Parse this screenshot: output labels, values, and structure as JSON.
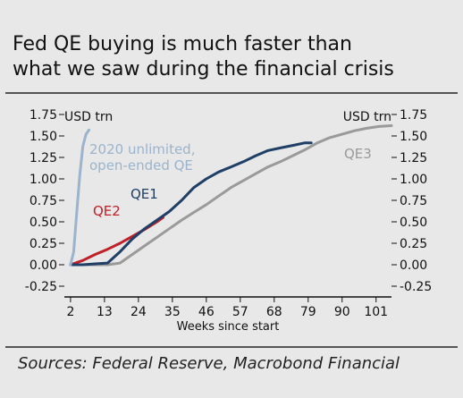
{
  "title_line1": "Fed QE buying is much faster than",
  "title_line2": "what we saw during the financial crisis",
  "source": "Sources: Federal Reserve, Macrobond Financial",
  "chart_data": {
    "type": "line",
    "xlabel": "Weeks since start",
    "unit_left": "USD trn",
    "unit_right": "USD trn",
    "xlim": [
      0,
      106
    ],
    "ylim": [
      -0.25,
      1.75
    ],
    "x_ticks": [
      2,
      13,
      24,
      35,
      46,
      57,
      68,
      79,
      90,
      101
    ],
    "y_ticks": [
      -0.25,
      0.0,
      0.25,
      0.5,
      0.75,
      1.0,
      1.25,
      1.5,
      1.75
    ],
    "y_tick_labels": [
      "-0.25",
      "0.00",
      "0.25",
      "0.50",
      "0.75",
      "1.00",
      "1.25",
      "1.50",
      "1.75"
    ],
    "series": [
      {
        "name": "2020 unlimited, open-ended QE",
        "name_lines": [
          "2020 unlimited,",
          "open-ended QE"
        ],
        "color": "#9bb3cc",
        "x": [
          2,
          3,
          4,
          5,
          6,
          7,
          8
        ],
        "y": [
          0.0,
          0.15,
          0.6,
          1.05,
          1.38,
          1.52,
          1.57
        ]
      },
      {
        "name": "QE1",
        "color": "#1f3f66",
        "x": [
          2,
          6,
          10,
          14,
          18,
          22,
          26,
          30,
          34,
          38,
          42,
          46,
          50,
          54,
          58,
          62,
          66,
          70,
          74,
          78,
          80
        ],
        "y": [
          0.0,
          0.0,
          0.01,
          0.02,
          0.15,
          0.3,
          0.42,
          0.52,
          0.62,
          0.75,
          0.9,
          1.0,
          1.08,
          1.14,
          1.2,
          1.27,
          1.33,
          1.36,
          1.39,
          1.42,
          1.42
        ]
      },
      {
        "name": "QE2",
        "color": "#c0202a",
        "x": [
          2,
          6,
          10,
          14,
          18,
          22,
          26,
          30,
          32
        ],
        "y": [
          0.0,
          0.05,
          0.12,
          0.18,
          0.25,
          0.33,
          0.41,
          0.5,
          0.55
        ]
      },
      {
        "name": "QE3",
        "color": "#9a9a9a",
        "x": [
          2,
          6,
          10,
          14,
          18,
          22,
          26,
          30,
          34,
          38,
          42,
          46,
          50,
          54,
          58,
          62,
          66,
          70,
          74,
          78,
          82,
          86,
          90,
          94,
          98,
          102,
          106
        ],
        "y": [
          0.0,
          0.0,
          0.0,
          0.0,
          0.02,
          0.12,
          0.22,
          0.32,
          0.42,
          0.52,
          0.61,
          0.7,
          0.8,
          0.9,
          0.98,
          1.06,
          1.14,
          1.2,
          1.27,
          1.34,
          1.42,
          1.48,
          1.52,
          1.56,
          1.59,
          1.61,
          1.62
        ]
      }
    ]
  }
}
